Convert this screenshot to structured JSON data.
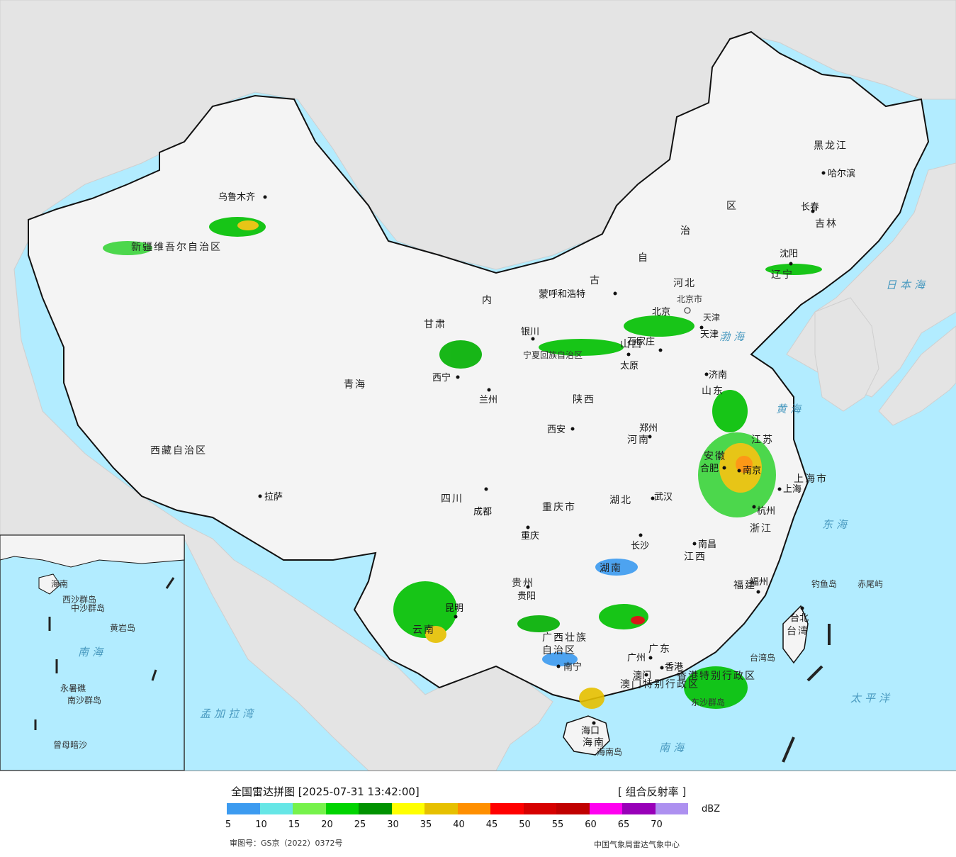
{
  "map": {
    "provinces": [
      "新疆维吾尔自治区",
      "西藏自治区",
      "青海",
      "甘肃",
      "内蒙古自治区",
      "黑龙江",
      "吉林",
      "辽宁",
      "河北",
      "山西",
      "陕西",
      "四川",
      "云南",
      "贵州",
      "广西壮族自治区",
      "广东",
      "湖南",
      "湖北",
      "河南",
      "山东",
      "江苏",
      "安徽",
      "浙江",
      "江西",
      "福建",
      "台湾",
      "海南",
      "重庆市",
      "上海市",
      "宁夏回族自治区",
      "北京市",
      "天津"
    ],
    "province_labels": [
      "新疆维吾尔自治区",
      "西藏自治区",
      "青海",
      "甘肃",
      "内",
      "蒙",
      "古",
      "自",
      "治",
      "区",
      "黑龙江",
      "吉林",
      "辽宁",
      "河北",
      "山西",
      "陕西",
      "四川",
      "云南",
      "贵州",
      "广西壮族",
      "自治区",
      "广东",
      "湖南",
      "湖北",
      "河南",
      "山东",
      "江苏",
      "安徽",
      "浙江",
      "江西",
      "福建",
      "台湾",
      "海南",
      "重庆市",
      "上海市",
      "宁夏回族自治区",
      "北京市",
      "天津",
      "香港特别行政区",
      "澳门特别行政区"
    ],
    "cities": [
      "乌鲁木齐",
      "哈尔滨",
      "长春",
      "沈阳",
      "呼和浩特",
      "北京",
      "天津",
      "石家庄",
      "太原",
      "济南",
      "银川",
      "西宁",
      "兰州",
      "西安",
      "郑州",
      "合肥",
      "南京",
      "上海",
      "杭州",
      "武汉",
      "成都",
      "重庆",
      "拉萨",
      "长沙",
      "南昌",
      "福州",
      "台北",
      "贵阳",
      "昆明",
      "南宁",
      "广州",
      "香港",
      "澳门",
      "海口"
    ],
    "seas": [
      "日本海",
      "渤海",
      "黄海",
      "东海",
      "太平洋",
      "南海",
      "孟加拉湾"
    ],
    "islands": [
      "钓鱼岛",
      "赤尾屿",
      "台湾岛",
      "海南岛",
      "东沙群岛"
    ],
    "inset_labels": [
      "南海",
      "西沙群岛",
      "中沙群岛",
      "南沙群岛",
      "黄岩岛",
      "永暑礁",
      "曾母暗沙",
      "海南"
    ]
  },
  "legend": {
    "title": "全国雷达拼图 [2025-07-31 13:42:00]",
    "product": "[ 组合反射率 ]",
    "unit": "dBZ",
    "colors": [
      "#3c9bf0",
      "#66e6e6",
      "#76f24b",
      "#00d400",
      "#009200",
      "#ffff00",
      "#e6c000",
      "#ff8f00",
      "#ff0000",
      "#d60000",
      "#c00000",
      "#ff00f0",
      "#9800b8",
      "#ad90f0"
    ],
    "ticks": [
      "5",
      "10",
      "15",
      "20",
      "25",
      "30",
      "35",
      "40",
      "45",
      "50",
      "55",
      "60",
      "65",
      "70"
    ],
    "approval": "审图号：GS京（2022）0372号",
    "center": "中国气象局雷达气象中心"
  }
}
